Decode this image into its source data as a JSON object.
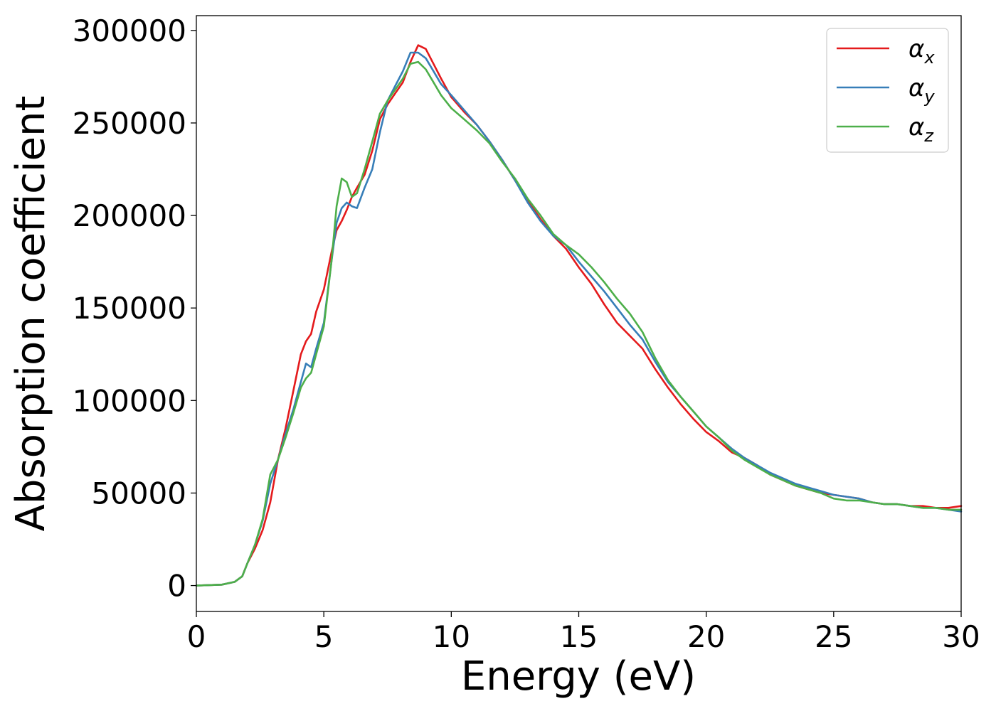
{
  "chart_data": {
    "type": "line",
    "xlabel": "Energy (eV)",
    "ylabel": "Absorption coefficient",
    "xlim": [
      0,
      30
    ],
    "ylim": [
      -14000,
      308000
    ],
    "xticks": [
      0,
      5,
      10,
      15,
      20,
      25,
      30
    ],
    "yticks": [
      0,
      50000,
      100000,
      150000,
      200000,
      250000,
      300000
    ],
    "grid": false,
    "legend_position": "top-right",
    "series": [
      {
        "name": "αx",
        "legend_base": "α",
        "legend_sub": "x",
        "color": "#e41a1c",
        "x": [
          0,
          1,
          1.5,
          1.8,
          2,
          2.3,
          2.6,
          2.9,
          3.2,
          3.5,
          3.8,
          4.1,
          4.3,
          4.5,
          4.7,
          5,
          5.3,
          5.5,
          5.7,
          5.9,
          6.1,
          6.3,
          6.6,
          6.9,
          7.2,
          7.5,
          7.8,
          8.1,
          8.4,
          8.7,
          9,
          9.3,
          9.6,
          10,
          10.5,
          11,
          11.5,
          12,
          12.5,
          13,
          13.5,
          14,
          14.5,
          15,
          15.5,
          16,
          16.5,
          17,
          17.5,
          18,
          18.5,
          19,
          19.5,
          20,
          20.5,
          21,
          21.5,
          22,
          22.5,
          23,
          23.5,
          24,
          24.5,
          25,
          25.5,
          26,
          26.5,
          27,
          27.5,
          28,
          28.5,
          29,
          29.5,
          30
        ],
        "values": [
          0,
          500,
          2000,
          5000,
          12000,
          20000,
          30000,
          45000,
          68000,
          85000,
          105000,
          125000,
          132000,
          136000,
          148000,
          160000,
          180000,
          192000,
          197000,
          203000,
          210000,
          215000,
          222000,
          235000,
          252000,
          260000,
          266000,
          272000,
          283000,
          292000,
          290000,
          282000,
          274000,
          264000,
          256000,
          249000,
          240000,
          230000,
          219000,
          208000,
          198000,
          189000,
          182000,
          172000,
          163000,
          152000,
          142000,
          135000,
          128000,
          117000,
          107000,
          98000,
          90000,
          83000,
          78000,
          72000,
          69000,
          65000,
          60000,
          57000,
          54000,
          52000,
          50000,
          49000,
          48000,
          47000,
          45000,
          44000,
          44000,
          43000,
          43000,
          42000,
          42000,
          43000
        ]
      },
      {
        "name": "αy",
        "legend_base": "α",
        "legend_sub": "y",
        "color": "#377eb8",
        "x": [
          0,
          1,
          1.5,
          1.8,
          2,
          2.3,
          2.6,
          2.9,
          3.2,
          3.5,
          3.8,
          4.1,
          4.3,
          4.5,
          4.7,
          5,
          5.3,
          5.5,
          5.7,
          5.9,
          6.1,
          6.3,
          6.6,
          6.9,
          7.2,
          7.5,
          7.8,
          8.1,
          8.4,
          8.7,
          9,
          9.3,
          9.6,
          10,
          10.5,
          11,
          11.5,
          12,
          12.5,
          13,
          13.5,
          14,
          14.5,
          15,
          15.5,
          16,
          16.5,
          17,
          17.5,
          18,
          18.5,
          19,
          19.5,
          20,
          20.5,
          21,
          21.5,
          22,
          22.5,
          23,
          23.5,
          24,
          24.5,
          25,
          25.5,
          26,
          26.5,
          27,
          27.5,
          28,
          28.5,
          29,
          29.5,
          30
        ],
        "values": [
          0,
          500,
          2000,
          5000,
          12000,
          22000,
          35000,
          55000,
          68000,
          82000,
          95000,
          110000,
          120000,
          118000,
          128000,
          142000,
          175000,
          196000,
          204000,
          207000,
          205000,
          204000,
          215000,
          225000,
          245000,
          262000,
          270000,
          278000,
          288000,
          288000,
          285000,
          278000,
          271000,
          265000,
          257000,
          249000,
          240000,
          230000,
          219000,
          207000,
          197000,
          189000,
          184000,
          175000,
          167000,
          159000,
          150000,
          141000,
          133000,
          121000,
          110000,
          102000,
          94000,
          86000,
          80000,
          74000,
          69000,
          65000,
          61000,
          58000,
          55000,
          53000,
          51000,
          49000,
          48000,
          47000,
          45000,
          44000,
          44000,
          43000,
          42000,
          42000,
          41000,
          40000
        ]
      },
      {
        "name": "αz",
        "legend_base": "α",
        "legend_sub": "z",
        "color": "#4daf4a",
        "x": [
          0,
          1,
          1.5,
          1.8,
          2,
          2.3,
          2.6,
          2.9,
          3.2,
          3.5,
          3.8,
          4.1,
          4.3,
          4.5,
          4.7,
          5,
          5.3,
          5.5,
          5.7,
          5.9,
          6.1,
          6.3,
          6.6,
          6.9,
          7.2,
          7.5,
          7.8,
          8.1,
          8.4,
          8.7,
          9,
          9.3,
          9.6,
          10,
          10.5,
          11,
          11.5,
          12,
          12.5,
          13,
          13.5,
          14,
          14.5,
          15,
          15.5,
          16,
          16.5,
          17,
          17.5,
          18,
          18.5,
          19,
          19.5,
          20,
          20.5,
          21,
          21.5,
          22,
          22.5,
          23,
          23.5,
          24,
          24.5,
          25,
          25.5,
          26,
          26.5,
          27,
          27.5,
          28,
          28.5,
          29,
          29.5,
          30
        ],
        "values": [
          0,
          500,
          2000,
          5000,
          12000,
          22000,
          36000,
          60000,
          68000,
          80000,
          93000,
          107000,
          112000,
          115000,
          125000,
          140000,
          175000,
          205000,
          220000,
          218000,
          210000,
          212000,
          225000,
          240000,
          255000,
          262000,
          268000,
          274000,
          282000,
          283000,
          279000,
          272000,
          265000,
          258000,
          252000,
          246000,
          239000,
          229000,
          220000,
          209000,
          200000,
          190000,
          184000,
          179000,
          172000,
          164000,
          155000,
          147000,
          137000,
          123000,
          111000,
          102000,
          94000,
          86000,
          80000,
          73000,
          68000,
          64000,
          60000,
          57000,
          54000,
          52000,
          50000,
          47000,
          46000,
          46000,
          45000,
          44000,
          44000,
          43000,
          42000,
          42000,
          41000,
          41000
        ]
      }
    ]
  }
}
